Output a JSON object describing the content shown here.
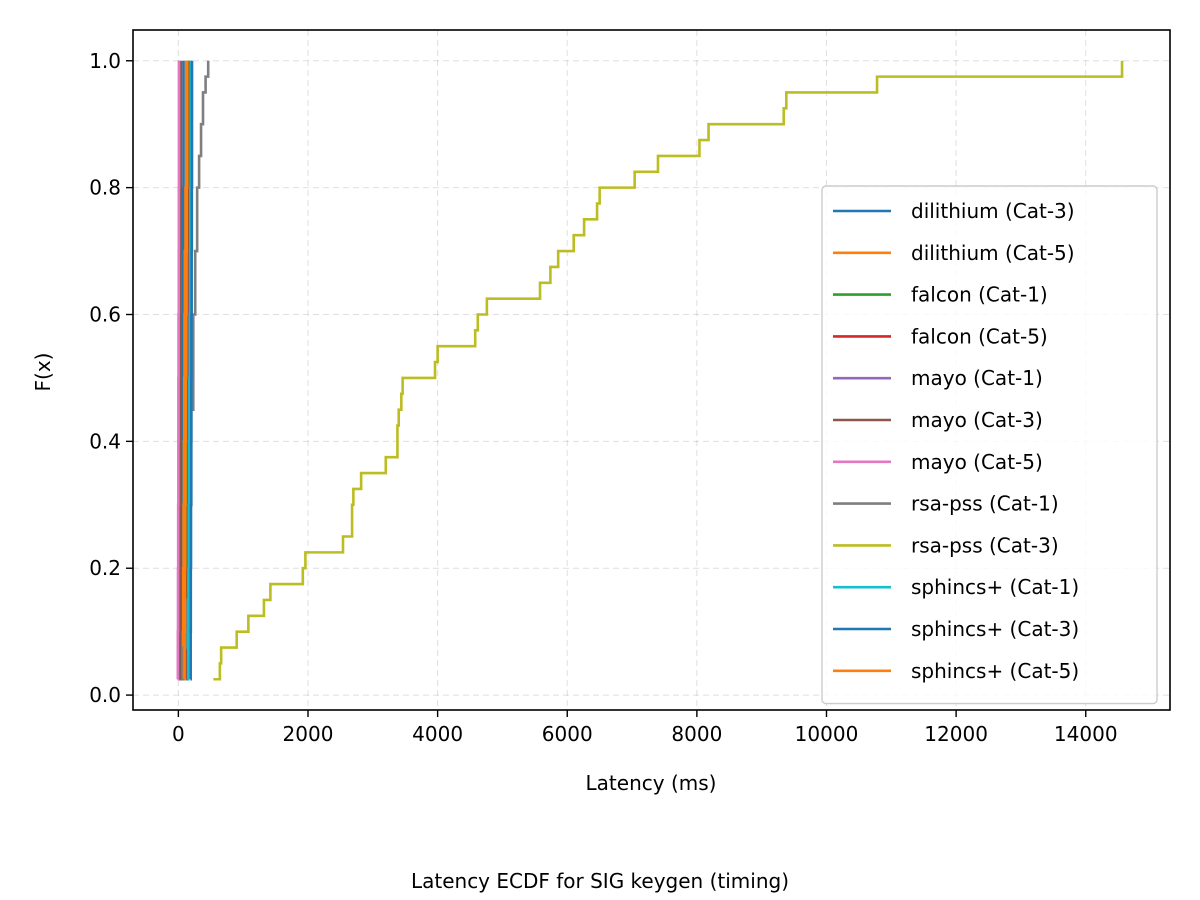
{
  "chart_data": {
    "type": "line",
    "title": "",
    "caption": "Latency ECDF for SIG keygen (timing)",
    "xlabel": "Latency (ms)",
    "ylabel": "F(x)",
    "xlim": [
      -700,
      15300
    ],
    "ylim": [
      -0.0235,
      1.0485
    ],
    "x_ticks": [
      0,
      2000,
      4000,
      6000,
      8000,
      10000,
      12000,
      14000
    ],
    "y_ticks": [
      0.0,
      0.2,
      0.4,
      0.6,
      0.8,
      1.0
    ],
    "x_tick_labels": [
      "0",
      "2000",
      "4000",
      "6000",
      "8000",
      "10000",
      "12000",
      "14000"
    ],
    "y_tick_labels": [
      "0.0",
      "0.2",
      "0.4",
      "0.6",
      "0.8",
      "1.0"
    ],
    "grid": true,
    "legend_position": "lower right",
    "series": [
      {
        "name": "dilithium (Cat-3)",
        "color": "#1f77b4",
        "x": [
          40,
          45,
          48,
          52,
          55,
          60,
          65,
          70,
          75,
          80
        ],
        "y": [
          0.025,
          0.1,
          0.2,
          0.3,
          0.4,
          0.5,
          0.6,
          0.7,
          0.8,
          1.0
        ]
      },
      {
        "name": "dilithium (Cat-5)",
        "color": "#ff7f0e",
        "x": [
          60,
          70,
          75,
          80,
          85,
          90,
          95,
          100,
          110,
          120
        ],
        "y": [
          0.025,
          0.1,
          0.2,
          0.3,
          0.4,
          0.5,
          0.6,
          0.7,
          0.8,
          1.0
        ]
      },
      {
        "name": "falcon (Cat-1)",
        "color": "#2ca02c",
        "x": [
          100,
          110,
          115,
          120,
          125,
          130,
          135,
          140,
          145,
          150
        ],
        "y": [
          0.025,
          0.1,
          0.2,
          0.3,
          0.4,
          0.5,
          0.6,
          0.7,
          0.8,
          1.0
        ]
      },
      {
        "name": "falcon (Cat-5)",
        "color": "#d62728",
        "x": [
          130,
          140,
          145,
          150,
          155,
          160,
          165,
          170,
          175,
          180
        ],
        "y": [
          0.025,
          0.1,
          0.2,
          0.3,
          0.4,
          0.5,
          0.6,
          0.7,
          0.8,
          1.0
        ]
      },
      {
        "name": "mayo (Cat-1)",
        "color": "#9467bd",
        "x": [
          -5,
          -3,
          -2,
          0,
          2,
          3,
          5,
          8,
          10,
          12
        ],
        "y": [
          0.025,
          0.1,
          0.2,
          0.3,
          0.4,
          0.5,
          0.6,
          0.7,
          0.8,
          1.0
        ]
      },
      {
        "name": "mayo (Cat-3)",
        "color": "#8c564b",
        "x": [
          15,
          18,
          20,
          22,
          25,
          28,
          30,
          33,
          36,
          40
        ],
        "y": [
          0.025,
          0.1,
          0.2,
          0.3,
          0.4,
          0.5,
          0.6,
          0.7,
          0.8,
          1.0
        ]
      },
      {
        "name": "mayo (Cat-5)",
        "color": "#e377c2",
        "x": [
          -10,
          -8,
          -5,
          -3,
          0,
          2,
          4,
          6,
          8,
          10
        ],
        "y": [
          0.025,
          0.1,
          0.2,
          0.3,
          0.4,
          0.5,
          0.6,
          0.7,
          0.8,
          1.0
        ]
      },
      {
        "name": "rsa-pss (Cat-1)",
        "color": "#7f7f7f",
        "x": [
          50,
          80,
          120,
          160,
          200,
          230,
          260,
          290,
          320,
          350,
          380,
          420,
          460
        ],
        "y": [
          0.025,
          0.075,
          0.15,
          0.3,
          0.45,
          0.6,
          0.7,
          0.8,
          0.85,
          0.9,
          0.95,
          0.975,
          1.0
        ]
      },
      {
        "name": "rsa-pss (Cat-3)",
        "color": "#bcbd22",
        "x": [
          540,
          640,
          660,
          900,
          1080,
          1320,
          1420,
          1920,
          1960,
          2540,
          2680,
          2700,
          2820,
          3200,
          3380,
          3400,
          3440,
          3460,
          3960,
          4000,
          4580,
          4620,
          4760,
          5580,
          5600,
          5740,
          5780,
          5860,
          6100,
          6260,
          6460,
          6480,
          6500,
          7040,
          7400,
          8040,
          8060,
          8180,
          9340,
          9360,
          9380,
          10780,
          14560
        ],
        "y": [
          0.025,
          0.05,
          0.075,
          0.1,
          0.125,
          0.15,
          0.175,
          0.2,
          0.225,
          0.25,
          0.3,
          0.325,
          0.35,
          0.375,
          0.425,
          0.45,
          0.475,
          0.5,
          0.525,
          0.55,
          0.575,
          0.6,
          0.625,
          0.65,
          0.65,
          0.675,
          0.675,
          0.7,
          0.725,
          0.75,
          0.775,
          0.775,
          0.8,
          0.825,
          0.85,
          0.875,
          0.875,
          0.9,
          0.925,
          0.925,
          0.95,
          0.975,
          1.0
        ]
      },
      {
        "name": "sphincs+ (Cat-1)",
        "color": "#17becf",
        "x": [
          140,
          150,
          155,
          160,
          165,
          170,
          175,
          180,
          185,
          190
        ],
        "y": [
          0.025,
          0.1,
          0.2,
          0.3,
          0.4,
          0.5,
          0.6,
          0.7,
          0.8,
          1.0
        ]
      },
      {
        "name": "sphincs+ (Cat-3)",
        "color": "#1f77b4",
        "x": [
          185,
          190,
          192,
          195,
          198,
          200,
          202,
          205,
          208,
          210
        ],
        "y": [
          0.025,
          0.1,
          0.2,
          0.3,
          0.4,
          0.5,
          0.6,
          0.7,
          0.8,
          1.0
        ]
      },
      {
        "name": "sphincs+ (Cat-5)",
        "color": "#ff7f0e",
        "x": [
          90,
          95,
          100,
          105,
          110,
          115,
          120,
          125,
          130,
          135
        ],
        "y": [
          0.025,
          0.1,
          0.2,
          0.3,
          0.4,
          0.5,
          0.6,
          0.7,
          0.8,
          1.0
        ]
      }
    ]
  }
}
